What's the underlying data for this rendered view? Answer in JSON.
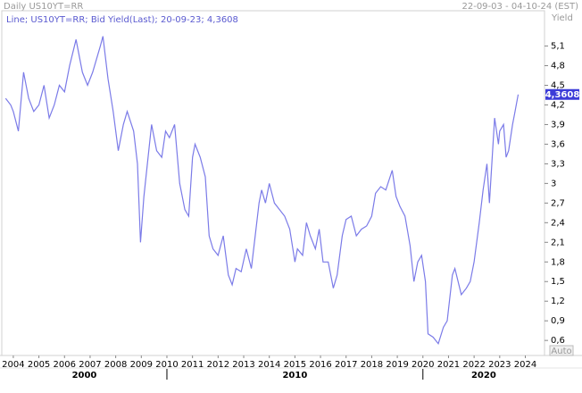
{
  "header": {
    "left": "Daily US10YT=RR",
    "right": "22-09-03 - 04-10-24 (EST)",
    "axis_title": "Yield",
    "auto_button": "Auto"
  },
  "chart_data": {
    "type": "line",
    "x": [
      2003.7,
      2003.9,
      2004.0,
      2004.2,
      2004.4,
      2004.6,
      2004.8,
      2005.0,
      2005.2,
      2005.4,
      2005.6,
      2005.8,
      2006.0,
      2006.2,
      2006.45,
      2006.7,
      2006.9,
      2007.1,
      2007.4,
      2007.5,
      2007.7,
      2007.9,
      2008.1,
      2008.3,
      2008.45,
      2008.7,
      2008.85,
      2008.97,
      2009.1,
      2009.4,
      2009.6,
      2009.8,
      2009.95,
      2010.1,
      2010.3,
      2010.5,
      2010.7,
      2010.85,
      2011.0,
      2011.1,
      2011.3,
      2011.5,
      2011.65,
      2011.8,
      2012.0,
      2012.2,
      2012.4,
      2012.55,
      2012.7,
      2012.9,
      2013.1,
      2013.3,
      2013.45,
      2013.6,
      2013.7,
      2013.85,
      2014.0,
      2014.2,
      2014.4,
      2014.6,
      2014.8,
      2015.0,
      2015.1,
      2015.3,
      2015.45,
      2015.6,
      2015.8,
      2015.95,
      2016.1,
      2016.3,
      2016.5,
      2016.65,
      2016.85,
      2017.0,
      2017.2,
      2017.4,
      2017.6,
      2017.8,
      2018.0,
      2018.15,
      2018.35,
      2018.55,
      2018.8,
      2018.95,
      2019.1,
      2019.3,
      2019.5,
      2019.65,
      2019.8,
      2019.95,
      2020.1,
      2020.2,
      2020.4,
      2020.6,
      2020.8,
      2020.95,
      2021.15,
      2021.25,
      2021.5,
      2021.7,
      2021.85,
      2022.0,
      2022.2,
      2022.35,
      2022.5,
      2022.6,
      2022.8,
      2022.95,
      2023.0,
      2023.15,
      2023.25,
      2023.35,
      2023.5,
      2023.6,
      2023.72
    ],
    "series": [
      {
        "name": "Line; US10YT=RR; Bid Yield(Last); 20-09-23; 4,3608",
        "color": "#7b7be8",
        "values": [
          4.3,
          4.2,
          4.1,
          3.8,
          4.7,
          4.3,
          4.1,
          4.2,
          4.5,
          4.0,
          4.2,
          4.5,
          4.4,
          4.8,
          5.2,
          4.7,
          4.5,
          4.7,
          5.1,
          5.25,
          4.6,
          4.1,
          3.5,
          3.9,
          4.1,
          3.8,
          3.3,
          2.1,
          2.8,
          3.9,
          3.5,
          3.4,
          3.8,
          3.7,
          3.9,
          3.0,
          2.6,
          2.5,
          3.4,
          3.6,
          3.4,
          3.1,
          2.2,
          2.0,
          1.9,
          2.2,
          1.6,
          1.45,
          1.7,
          1.65,
          2.0,
          1.7,
          2.2,
          2.7,
          2.9,
          2.7,
          3.0,
          2.7,
          2.6,
          2.5,
          2.3,
          1.8,
          2.0,
          1.9,
          2.4,
          2.2,
          2.0,
          2.3,
          1.8,
          1.8,
          1.4,
          1.6,
          2.2,
          2.45,
          2.5,
          2.2,
          2.3,
          2.35,
          2.5,
          2.85,
          2.95,
          2.9,
          3.2,
          2.8,
          2.65,
          2.5,
          2.05,
          1.5,
          1.8,
          1.9,
          1.5,
          0.7,
          0.65,
          0.55,
          0.8,
          0.9,
          1.6,
          1.7,
          1.3,
          1.4,
          1.5,
          1.8,
          2.4,
          2.9,
          3.3,
          2.7,
          4.0,
          3.6,
          3.8,
          3.9,
          3.4,
          3.5,
          3.9,
          4.1,
          4.36
        ]
      }
    ],
    "last_value_label": "4,3608",
    "xlim": [
      2003.55,
      2024.75
    ],
    "xticks": [
      2004,
      2005,
      2006,
      2007,
      2008,
      2009,
      2010,
      2011,
      2012,
      2013,
      2014,
      2015,
      2016,
      2017,
      2018,
      2019,
      2020,
      2021,
      2022,
      2023,
      2024
    ],
    "decades": [
      2000,
      2010,
      2020
    ],
    "ylim": [
      0.37,
      5.64
    ],
    "yticks": [
      {
        "value": 0.6,
        "label": "0,6"
      },
      {
        "value": 0.9,
        "label": "0,9"
      },
      {
        "value": 1.2,
        "label": "1,2"
      },
      {
        "value": 1.5,
        "label": "1,5"
      },
      {
        "value": 1.8,
        "label": "1,8"
      },
      {
        "value": 2.1,
        "label": "2,1"
      },
      {
        "value": 2.4,
        "label": "2,4"
      },
      {
        "value": 2.7,
        "label": "2,7"
      },
      3,
      {
        "value": 3.3,
        "label": "3,3"
      },
      {
        "value": 3.6,
        "label": "3,6"
      },
      {
        "value": 3.9,
        "label": "3,9"
      },
      {
        "value": 4.2,
        "label": "4,2"
      },
      {
        "value": 4.5,
        "label": "4,5"
      },
      {
        "value": 4.8,
        "label": "4,8"
      },
      {
        "value": 5.1,
        "label": "5,1"
      }
    ]
  }
}
